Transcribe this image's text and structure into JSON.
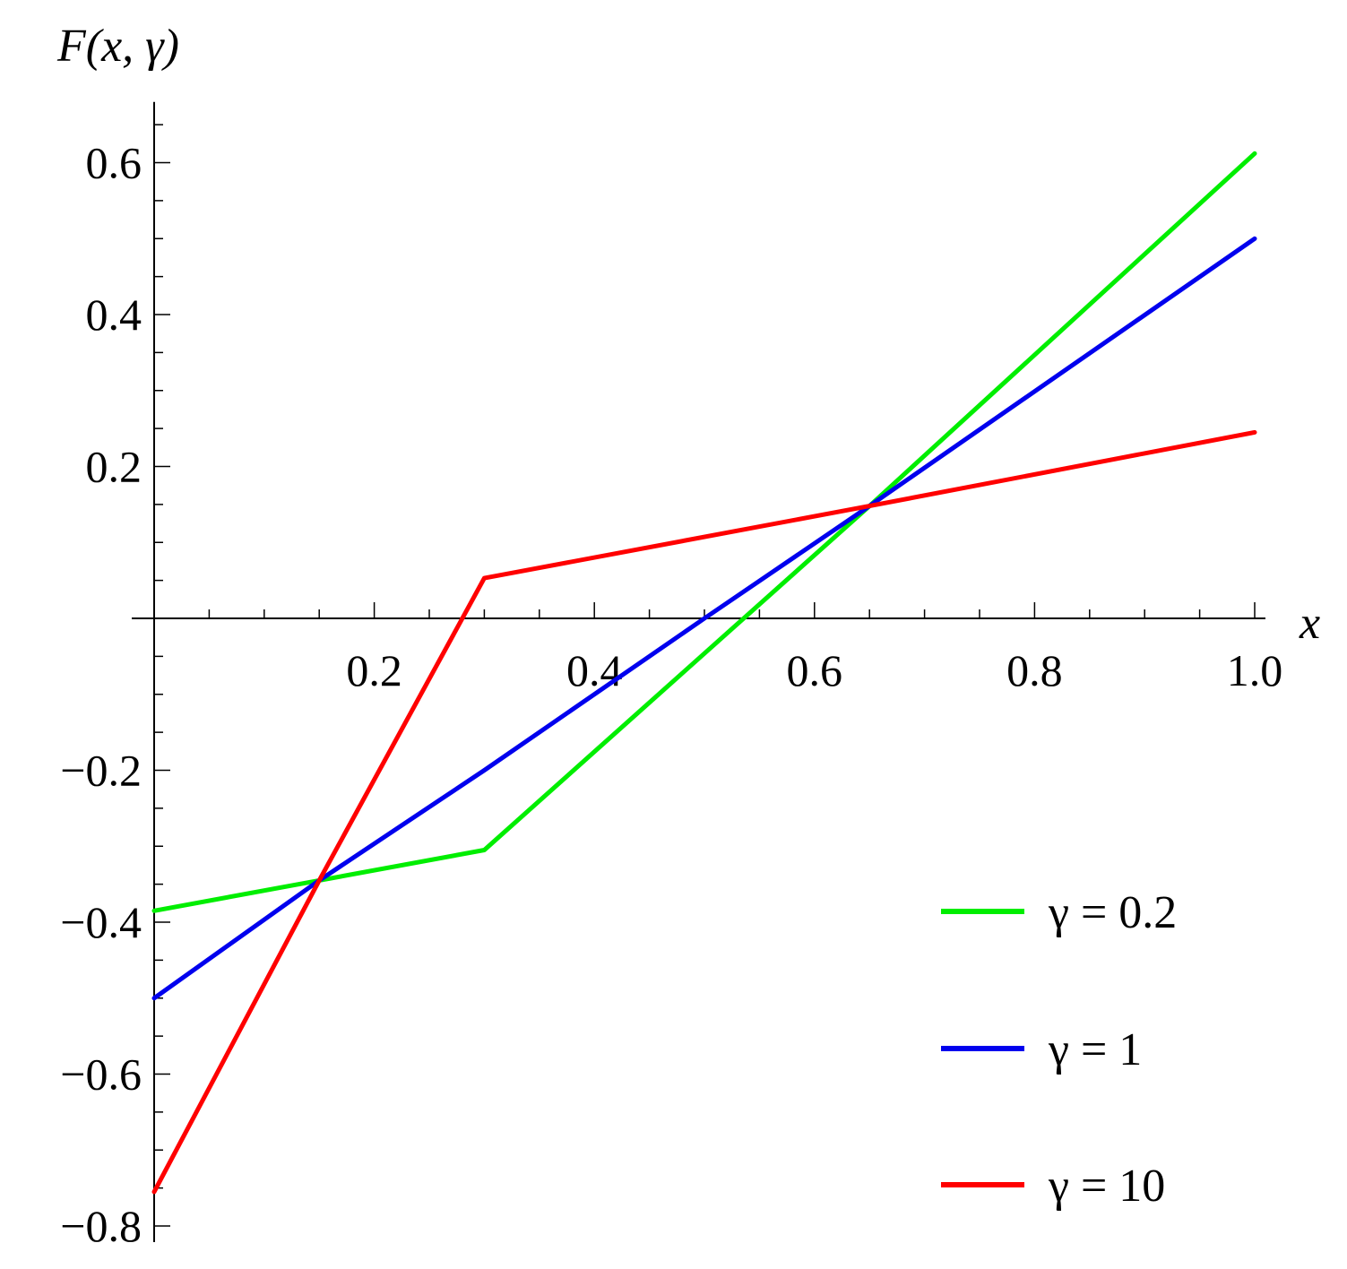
{
  "chart_data": {
    "type": "line",
    "title": "",
    "xlabel": "x",
    "ylabel": "F(x, γ)",
    "xlim": [
      0,
      1.0
    ],
    "ylim": [
      -0.8,
      0.68
    ],
    "x_ticks": [
      "0.2",
      "0.4",
      "0.6",
      "0.8",
      "1.0"
    ],
    "x_tick_values": [
      0.2,
      0.4,
      0.6,
      0.8,
      1.0
    ],
    "y_ticks": [
      "0.6",
      "0.4",
      "0.2",
      "−0.2",
      "−0.4",
      "−0.6",
      "−0.8"
    ],
    "y_tick_values": [
      0.6,
      0.4,
      0.2,
      -0.2,
      -0.4,
      -0.6,
      -0.8
    ],
    "grid": false,
    "legend_position": "bottom-right",
    "series": [
      {
        "name": "γ = 0.2",
        "color": "#00ee00",
        "x": [
          0,
          0.15,
          0.3,
          0.65,
          1.0
        ],
        "y": [
          -0.385,
          -0.345,
          -0.305,
          0.148,
          0.612
        ]
      },
      {
        "name": "γ = 1",
        "color": "#0000ee",
        "x": [
          0,
          0.15,
          0.3,
          0.5,
          0.65,
          1.0
        ],
        "y": [
          -0.5,
          -0.345,
          -0.2,
          0.0,
          0.148,
          0.5
        ]
      },
      {
        "name": "γ = 10",
        "color": "#ff0000",
        "x": [
          0,
          0.15,
          0.3,
          0.65,
          1.0
        ],
        "y": [
          -0.755,
          -0.345,
          0.053,
          0.148,
          0.245
        ]
      }
    ]
  }
}
